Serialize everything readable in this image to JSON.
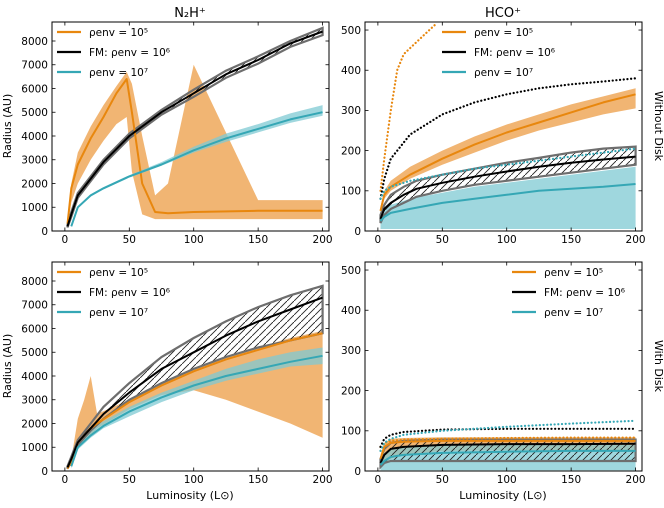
{
  "colors": {
    "orange": "#e8870e",
    "black": "#000000",
    "teal": "#35a7b5",
    "gray": "#777777"
  },
  "column_titles": [
    "N₂H⁺",
    "HCO⁺"
  ],
  "row_labels": [
    "Without Disk",
    "With Disk"
  ],
  "legend": {
    "rho5": "ρenv = 10⁵",
    "fm": "FM: ρenv = 10⁶",
    "rho7": "ρenv = 10⁷"
  },
  "chart_data": [
    {
      "type": "line",
      "panel": "top-left",
      "title": "N₂H⁺",
      "xlabel": "",
      "ylabel": "Radius (AU)",
      "xlim": [
        -10,
        205
      ],
      "ylim": [
        0,
        8800
      ],
      "xticks": [
        0,
        50,
        100,
        150,
        200
      ],
      "yticks": [
        0,
        1000,
        2000,
        3000,
        4000,
        5000,
        6000,
        7000,
        8000
      ],
      "series": [
        {
          "name": "ρenv = 10⁵",
          "color": "orange",
          "style": "solid",
          "x": [
            2,
            5,
            10,
            20,
            30,
            40,
            48,
            52,
            60,
            70,
            80,
            100,
            150,
            200
          ],
          "values": [
            300,
            1800,
            2800,
            3900,
            4800,
            5800,
            6400,
            5000,
            2000,
            800,
            750,
            800,
            850,
            850
          ],
          "band_upper": [
            400,
            2000,
            3300,
            4400,
            5300,
            6100,
            6700,
            6200,
            4000,
            1500,
            2000,
            7000,
            1300,
            1300
          ],
          "band_lower": [
            100,
            1200,
            2000,
            3000,
            3800,
            4500,
            4800,
            2500,
            700,
            500,
            500,
            500,
            500,
            500
          ]
        },
        {
          "name": "FM: ρenv = 10⁶",
          "color": "black",
          "style": "solid",
          "x": [
            2,
            5,
            10,
            20,
            30,
            50,
            75,
            100,
            125,
            150,
            175,
            200
          ],
          "values": [
            200,
            700,
            1500,
            2200,
            2900,
            4000,
            5000,
            5800,
            6600,
            7200,
            7900,
            8400
          ],
          "band_upper": [
            250,
            800,
            1600,
            2300,
            3000,
            4100,
            5100,
            5950,
            6750,
            7350,
            8000,
            8550
          ],
          "band_lower": [
            150,
            600,
            1400,
            2100,
            2800,
            3900,
            4900,
            5650,
            6450,
            7050,
            7750,
            8250
          ],
          "hatched": true
        },
        {
          "name": "ρenv = 10⁷",
          "color": "teal",
          "style": "solid",
          "x": [
            5,
            10,
            20,
            30,
            50,
            75,
            100,
            125,
            150,
            175,
            200
          ],
          "values": [
            200,
            1000,
            1500,
            1800,
            2300,
            2800,
            3400,
            3900,
            4300,
            4700,
            5000
          ],
          "band_upper": [
            250,
            1050,
            1550,
            1850,
            2350,
            2900,
            3550,
            4100,
            4500,
            4950,
            5300
          ],
          "band_lower": [
            150,
            950,
            1450,
            1750,
            2250,
            2750,
            3300,
            3750,
            4150,
            4550,
            4850
          ]
        }
      ]
    },
    {
      "type": "line",
      "panel": "top-right",
      "title": "HCO⁺",
      "xlabel": "",
      "ylabel": "",
      "xlim": [
        -10,
        205
      ],
      "ylim": [
        0,
        520
      ],
      "xticks": [
        0,
        50,
        100,
        150,
        200
      ],
      "yticks": [
        0,
        100,
        200,
        300,
        400,
        500
      ],
      "series": [
        {
          "name": "ρenv = 10⁵",
          "color": "orange",
          "style": "solid",
          "x": [
            2,
            5,
            10,
            25,
            50,
            75,
            100,
            125,
            150,
            175,
            200
          ],
          "values": [
            50,
            90,
            110,
            140,
            180,
            215,
            245,
            270,
            295,
            320,
            340
          ],
          "band_upper": [
            60,
            100,
            125,
            160,
            200,
            235,
            265,
            290,
            315,
            335,
            355
          ],
          "band_lower": [
            40,
            80,
            100,
            130,
            165,
            195,
            225,
            250,
            270,
            290,
            305
          ]
        },
        {
          "name": "FM: ρenv = 10⁶",
          "color": "black",
          "style": "solid",
          "x": [
            2,
            5,
            10,
            20,
            30,
            50,
            75,
            100,
            125,
            150,
            175,
            200
          ],
          "values": [
            30,
            55,
            70,
            90,
            105,
            120,
            135,
            148,
            160,
            170,
            178,
            185
          ],
          "band_upper": [
            40,
            65,
            90,
            110,
            125,
            140,
            155,
            170,
            182,
            195,
            205,
            210
          ],
          "band_lower": [
            20,
            40,
            55,
            70,
            85,
            100,
            115,
            125,
            135,
            145,
            155,
            165
          ],
          "hatched": true
        },
        {
          "name": "ρenv = 10⁷",
          "color": "teal",
          "style": "solid",
          "x": [
            2,
            5,
            10,
            25,
            50,
            75,
            100,
            125,
            150,
            175,
            200
          ],
          "values": [
            25,
            35,
            45,
            55,
            70,
            80,
            90,
            100,
            105,
            110,
            117
          ],
          "band_upper": [
            35,
            50,
            65,
            80,
            95,
            110,
            120,
            130,
            140,
            150,
            160
          ],
          "band_lower": [
            5,
            5,
            5,
            5,
            5,
            5,
            5,
            5,
            5,
            5,
            5
          ]
        },
        {
          "name": "ρenv = 10⁵ (dotted)",
          "color": "orange",
          "style": "dotted",
          "x": [
            2,
            5,
            10,
            15,
            20,
            30,
            40,
            45
          ],
          "values": [
            100,
            180,
            300,
            400,
            440,
            470,
            500,
            515
          ]
        },
        {
          "name": "FM: ρenv = 10⁶ (dotted)",
          "color": "black",
          "style": "dotted",
          "x": [
            2,
            5,
            10,
            25,
            50,
            75,
            100,
            125,
            150,
            175,
            200
          ],
          "values": [
            80,
            130,
            180,
            240,
            290,
            320,
            340,
            355,
            365,
            372,
            380
          ]
        },
        {
          "name": "ρenv = 10⁷ (dotted)",
          "color": "teal",
          "style": "dotted",
          "x": [
            2,
            5,
            10,
            25,
            50,
            75,
            100,
            125,
            150,
            175,
            200
          ],
          "values": [
            80,
            100,
            110,
            125,
            140,
            155,
            165,
            175,
            185,
            195,
            205
          ]
        }
      ]
    },
    {
      "type": "line",
      "panel": "bottom-left",
      "title": "",
      "xlabel": "Luminosity (L⊙)",
      "ylabel": "Radius (AU)",
      "xlim": [
        -10,
        205
      ],
      "ylim": [
        0,
        8800
      ],
      "xticks": [
        0,
        50,
        100,
        150,
        200
      ],
      "yticks": [
        0,
        1000,
        2000,
        3000,
        4000,
        5000,
        6000,
        7000,
        8000
      ],
      "series": [
        {
          "name": "ρenv = 10⁵",
          "color": "orange",
          "style": "solid",
          "x": [
            2,
            5,
            10,
            15,
            20,
            25,
            50,
            75,
            100,
            125,
            150,
            175,
            200
          ],
          "values": [
            100,
            400,
            1200,
            1500,
            1800,
            2000,
            2900,
            3600,
            4200,
            4700,
            5100,
            5500,
            5800
          ],
          "band_upper": [
            150,
            500,
            2200,
            3000,
            4000,
            2400,
            3000,
            3700,
            4300,
            4800,
            5200,
            5600,
            5900
          ],
          "band_lower": [
            50,
            300,
            1000,
            1200,
            1500,
            1800,
            2600,
            3200,
            3400,
            3000,
            2500,
            2000,
            1400
          ]
        },
        {
          "name": "FM: ρenv = 10⁶",
          "color": "black",
          "style": "solid",
          "x": [
            2,
            5,
            10,
            20,
            30,
            50,
            75,
            100,
            125,
            150,
            175,
            200
          ],
          "values": [
            150,
            500,
            1200,
            1800,
            2400,
            3300,
            4300,
            5000,
            5700,
            6300,
            6800,
            7300
          ],
          "band_upper": [
            200,
            600,
            1300,
            2000,
            2700,
            3700,
            4800,
            5600,
            6300,
            6900,
            7400,
            7800
          ],
          "band_lower": [
            100,
            400,
            1100,
            1700,
            2200,
            3000,
            3700,
            4300,
            4800,
            5200,
            5500,
            5800
          ],
          "hatched": true
        },
        {
          "name": "ρenv = 10⁷",
          "color": "teal",
          "style": "solid",
          "x": [
            5,
            10,
            20,
            30,
            50,
            75,
            100,
            125,
            150,
            175,
            200
          ],
          "values": [
            200,
            1000,
            1500,
            1900,
            2500,
            3100,
            3600,
            4000,
            4300,
            4600,
            4850
          ],
          "band_upper": [
            300,
            1100,
            1700,
            2100,
            2700,
            3300,
            3800,
            4300,
            4700,
            5000,
            5200
          ],
          "band_lower": [
            100,
            900,
            1400,
            1800,
            2300,
            2900,
            3400,
            3800,
            4100,
            4400,
            4500
          ]
        }
      ]
    },
    {
      "type": "line",
      "panel": "bottom-right",
      "title": "",
      "xlabel": "Luminosity (L⊙)",
      "ylabel": "",
      "xlim": [
        -10,
        205
      ],
      "ylim": [
        0,
        520
      ],
      "xticks": [
        0,
        50,
        100,
        150,
        200
      ],
      "yticks": [
        0,
        100,
        200,
        300,
        400,
        500
      ],
      "series": [
        {
          "name": "ρenv = 10⁵",
          "color": "orange",
          "style": "solid",
          "x": [
            2,
            5,
            10,
            20,
            50,
            100,
            150,
            200
          ],
          "values": [
            30,
            60,
            70,
            73,
            75,
            75,
            75,
            75
          ],
          "band_upper": [
            40,
            70,
            80,
            82,
            84,
            84,
            84,
            84
          ],
          "band_lower": [
            10,
            20,
            30,
            40,
            50,
            52,
            52,
            52
          ]
        },
        {
          "name": "FM: ρenv = 10⁶",
          "color": "black",
          "style": "solid",
          "x": [
            2,
            5,
            10,
            20,
            50,
            100,
            150,
            200
          ],
          "values": [
            20,
            40,
            55,
            60,
            65,
            67,
            67,
            68
          ],
          "band_upper": [
            30,
            55,
            70,
            75,
            78,
            78,
            78,
            78
          ],
          "band_lower": [
            10,
            20,
            25,
            25,
            25,
            25,
            25,
            25
          ],
          "hatched": true
        },
        {
          "name": "ρenv = 10⁷",
          "color": "teal",
          "style": "solid",
          "x": [
            2,
            5,
            10,
            20,
            50,
            100,
            150,
            200
          ],
          "values": [
            15,
            25,
            35,
            40,
            45,
            48,
            50,
            50
          ],
          "band_upper": [
            30,
            45,
            55,
            60,
            65,
            65,
            65,
            65
          ],
          "band_lower": [
            2,
            2,
            2,
            2,
            2,
            2,
            2,
            2
          ]
        },
        {
          "name": "ρenv = 10⁵ (dotted)",
          "color": "orange",
          "style": "dotted",
          "x": [
            2,
            5,
            10,
            20,
            50,
            100,
            150,
            200
          ],
          "values": [
            60,
            70,
            75,
            78,
            80,
            82,
            83,
            83
          ]
        },
        {
          "name": "FM: ρenv = 10⁶ (dotted)",
          "color": "black",
          "style": "dotted",
          "x": [
            2,
            5,
            10,
            20,
            50,
            100,
            150,
            200
          ],
          "values": [
            60,
            80,
            90,
            97,
            103,
            105,
            105,
            105
          ]
        },
        {
          "name": "ρenv = 10⁷ (dotted)",
          "color": "teal",
          "style": "dotted",
          "x": [
            2,
            5,
            10,
            20,
            50,
            100,
            150,
            200
          ],
          "values": [
            50,
            70,
            80,
            90,
            100,
            110,
            118,
            125
          ]
        }
      ]
    }
  ]
}
